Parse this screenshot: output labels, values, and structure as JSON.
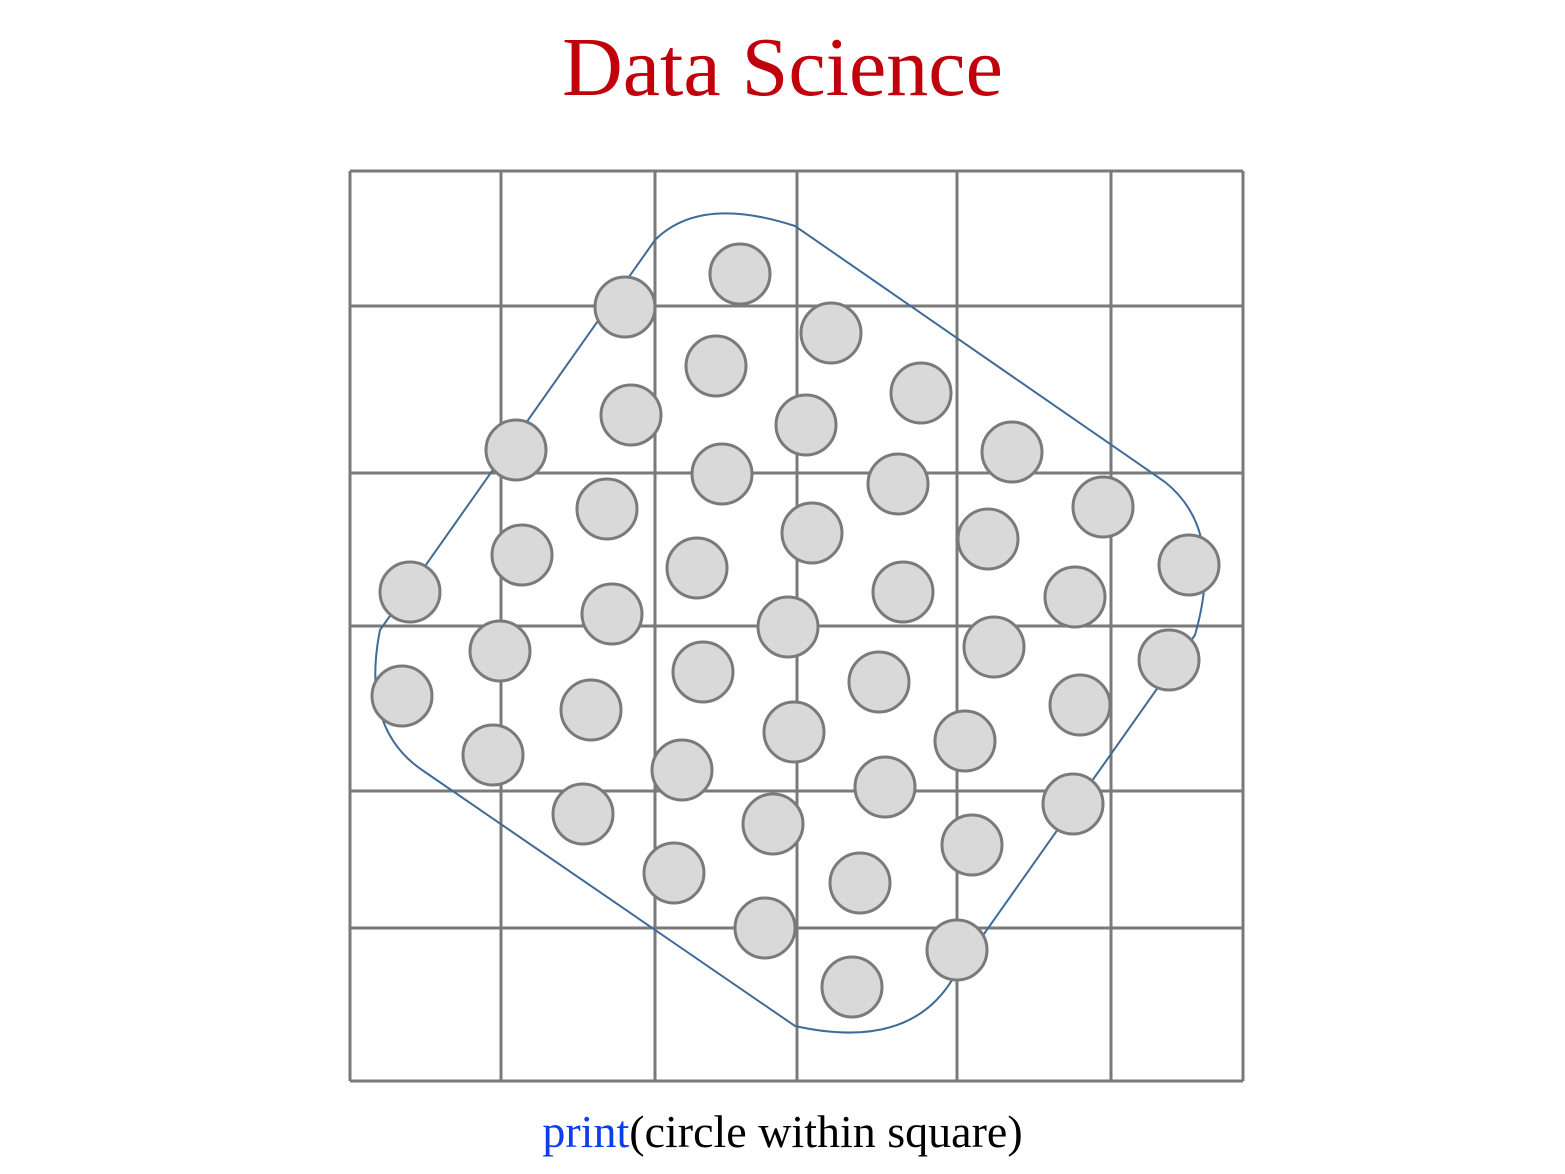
{
  "title": {
    "text": "Data Science",
    "color": "#c0000b"
  },
  "caption": {
    "keyword": "print",
    "keyword_color": "#0a3ef0",
    "rest": "(circle within square)",
    "rest_color": "#000000"
  },
  "colors": {
    "grid": "#7a7a7a",
    "outline": "#3e6b98",
    "dot_fill": "#d9d9d9",
    "dot_stroke": "#7a7a7a"
  },
  "icons": {
    "grid": "square-grid",
    "outline": "rounded-square-outline",
    "dots": "circle-dots"
  }
}
